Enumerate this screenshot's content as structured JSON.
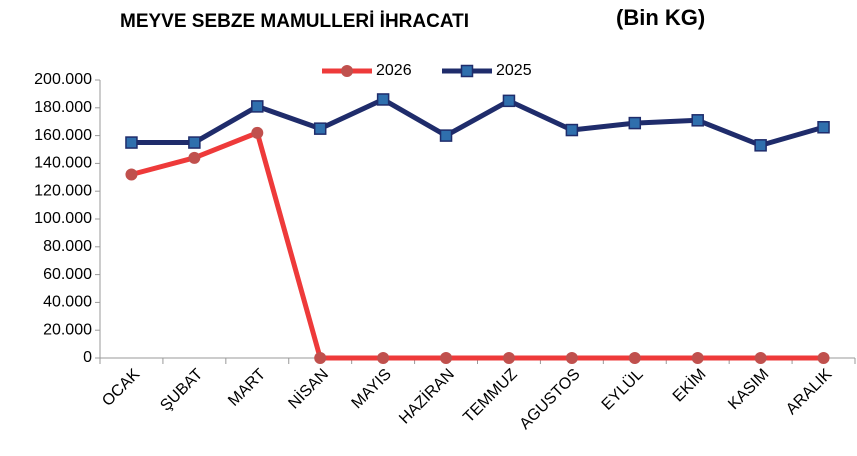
{
  "chart_data": {
    "type": "line",
    "title": "MEYVE SEBZE MAMULLERİ İHRACATI",
    "subtitle": "(Bin KG)",
    "categories": [
      "OCAK",
      "ŞUBAT",
      "MART",
      "NİSAN",
      "MAYIS",
      "HAZİRAN",
      "TEMMUZ",
      "AGUSTOS",
      "EYLÜL",
      "EKİM",
      "KASIM",
      "ARALIK"
    ],
    "series": [
      {
        "name": "2026",
        "color": "#ee3a3a",
        "marker": "circle",
        "marker_color": "#c0504d",
        "values": [
          132000,
          144000,
          162000,
          0,
          0,
          0,
          0,
          0,
          0,
          0,
          0,
          0
        ]
      },
      {
        "name": "2025",
        "color": "#1f2c6b",
        "marker": "square",
        "marker_color": "#2f6fad",
        "values": [
          155000,
          155000,
          181000,
          165000,
          186000,
          160000,
          185000,
          164000,
          169000,
          171000,
          153000,
          166000
        ]
      }
    ],
    "ylim": [
      0,
      200000
    ],
    "yticks": [
      0,
      {
        "value": 20000,
        "label": "20.000"
      },
      {
        "value": 40000,
        "label": "40.000"
      },
      {
        "value": 60000,
        "label": "60.000"
      },
      {
        "value": 80000,
        "label": "80.000"
      },
      {
        "value": 100000,
        "label": "100.000"
      },
      {
        "value": 120000,
        "label": "120.000"
      },
      {
        "value": 140000,
        "label": "140.000"
      },
      {
        "value": 160000,
        "label": "160.000"
      },
      {
        "value": 180000,
        "label": "180.000"
      },
      {
        "value": 200000,
        "label": "200.000"
      }
    ],
    "grid": false,
    "legend": "top"
  }
}
